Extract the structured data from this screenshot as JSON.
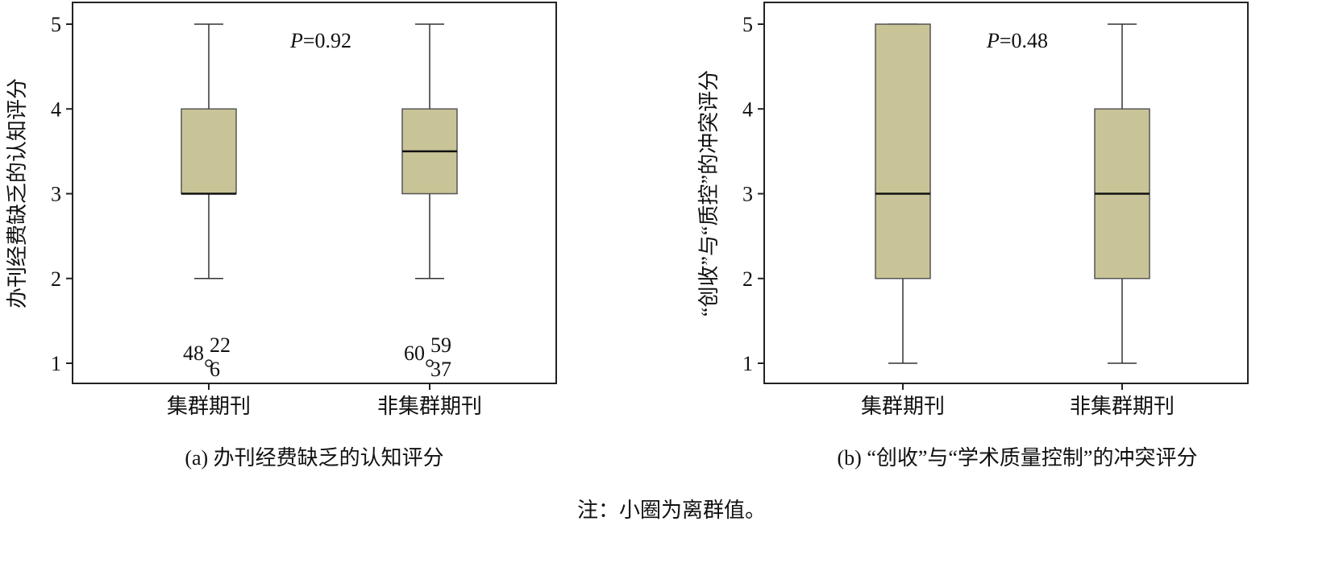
{
  "chart_data": [
    {
      "type": "boxplot",
      "caption": "(a) 办刊经费缺乏的认知评分",
      "ylabel": "办刊经费缺乏的认知评分",
      "ylim": [
        0.78,
        5.25
      ],
      "yticks": [
        "1",
        "2",
        "3",
        "4",
        "5"
      ],
      "categories": [
        "集群期刊",
        "非集群期刊"
      ],
      "boxes": [
        {
          "min": 2,
          "q1": 3,
          "median": 3,
          "q3": 4,
          "max": 5,
          "outlier_value": 1,
          "outlier_labels": [
            "48",
            "22",
            "6"
          ]
        },
        {
          "min": 2,
          "q1": 3,
          "median": 3.5,
          "q3": 4,
          "max": 5,
          "outlier_value": 1,
          "outlier_labels": [
            "60",
            "59",
            "37"
          ]
        }
      ],
      "annotation": {
        "p_symbol": "P",
        "p_text": "=0.92"
      },
      "box_color": "#c9c497"
    },
    {
      "type": "boxplot",
      "caption": "(b) “创收”与“学术质量控制”的冲突评分",
      "ylabel": "“创收”与“质控”的冲突评分",
      "ylim": [
        0.78,
        5.25
      ],
      "yticks": [
        "1",
        "2",
        "3",
        "4",
        "5"
      ],
      "categories": [
        "集群期刊",
        "非集群期刊"
      ],
      "boxes": [
        {
          "min": 1,
          "q1": 2,
          "median": 3,
          "q3": 5,
          "max": 5
        },
        {
          "min": 1,
          "q1": 2,
          "median": 3,
          "q3": 4,
          "max": 5
        }
      ],
      "annotation": {
        "p_symbol": "P",
        "p_text": "=0.48"
      },
      "box_color": "#c9c497"
    }
  ],
  "note": "注：小圈为离群值。"
}
